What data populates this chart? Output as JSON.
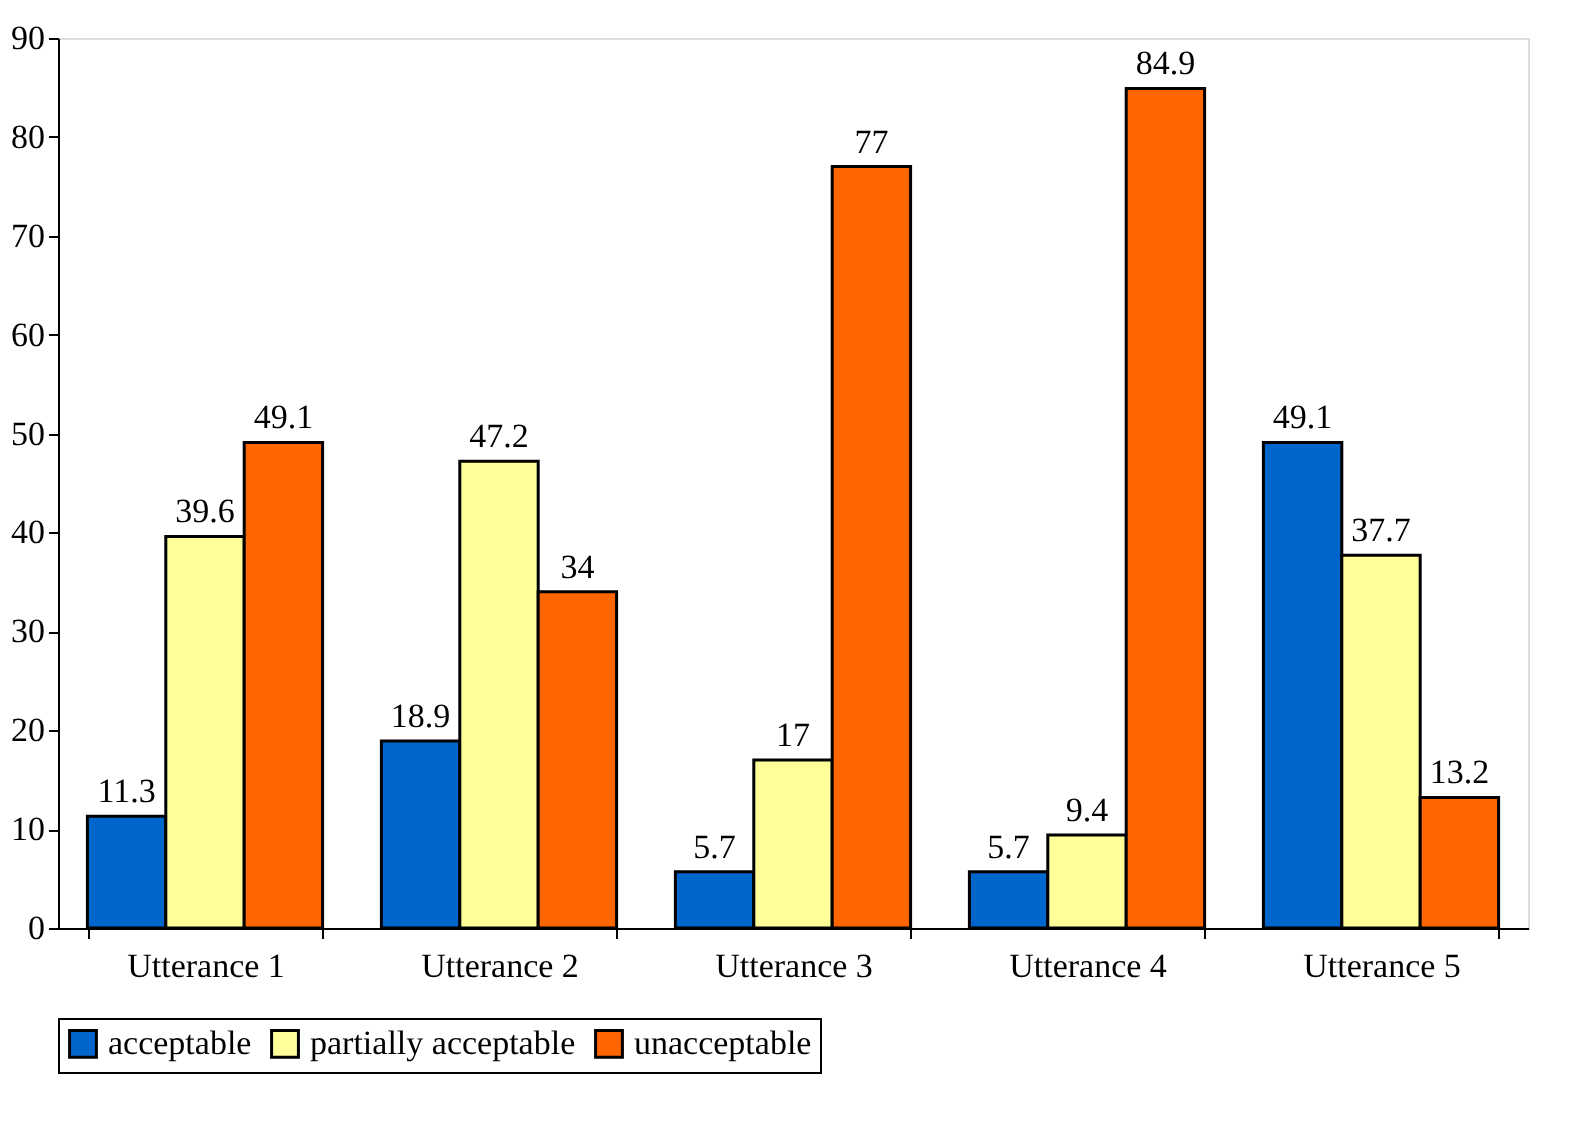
{
  "chart_data": {
    "type": "bar",
    "categories": [
      "Utterance 1",
      "Utterance 2",
      "Utterance 3",
      "Utterance 4",
      "Utterance 5"
    ],
    "series": [
      {
        "name": "acceptable",
        "color": "#0066cc",
        "values": [
          11.3,
          18.9,
          5.7,
          5.7,
          49.1
        ]
      },
      {
        "name": "partially acceptable",
        "color": "#ffff99",
        "values": [
          39.6,
          47.2,
          17,
          9.4,
          37.7
        ]
      },
      {
        "name": "unacceptable",
        "color": "#ff6600",
        "values": [
          49.1,
          34,
          77,
          84.9,
          13.2
        ]
      }
    ],
    "ylim": [
      0,
      90
    ],
    "yticks": [
      0,
      10,
      20,
      30,
      40,
      50,
      60,
      70,
      80,
      90
    ],
    "data_labels": true,
    "grid": false,
    "legend": "bottom"
  }
}
